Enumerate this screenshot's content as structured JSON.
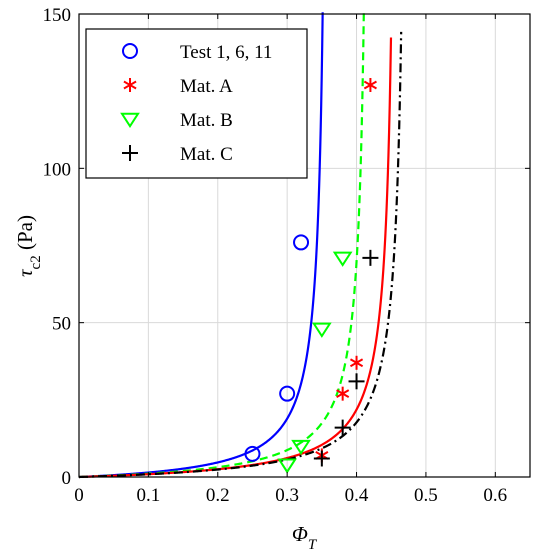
{
  "chart_data": {
    "type": "scatter",
    "xlabel": "Φ",
    "xlabel_sub": "T",
    "ylabel": "τ",
    "ylabel_sub": "c2",
    "ylabel_unit": " (Pa)",
    "xlim": [
      0,
      0.65
    ],
    "ylim": [
      0,
      150
    ],
    "x_ticks": [
      0,
      0.1,
      0.2,
      0.3,
      0.4,
      0.5,
      0.6
    ],
    "x_tick_labels": [
      "0",
      "0.1",
      "0.2",
      "0.3",
      "0.4",
      "0.5",
      "0.6"
    ],
    "y_ticks": [
      0,
      50,
      100,
      150
    ],
    "y_tick_labels": [
      "0",
      "50",
      "100",
      "150"
    ],
    "grid": true,
    "legend_position": "top-left",
    "series": [
      {
        "name": "Test 1, 6, 11",
        "marker": "circle",
        "color": "#0000ff",
        "points": [
          [
            0.25,
            7.5
          ],
          [
            0.3,
            27
          ],
          [
            0.32,
            76
          ]
        ]
      },
      {
        "name": "Mat. A",
        "marker": "asterisk",
        "color": "#ff0000",
        "points": [
          [
            0.35,
            7
          ],
          [
            0.38,
            27
          ],
          [
            0.4,
            37
          ],
          [
            0.42,
            127
          ]
        ]
      },
      {
        "name": "Mat. B",
        "marker": "triangle-down",
        "color": "#00ff00",
        "points": [
          [
            0.3,
            4
          ],
          [
            0.32,
            10
          ],
          [
            0.35,
            48
          ],
          [
            0.38,
            71
          ]
        ]
      },
      {
        "name": "Mat. C",
        "marker": "plus",
        "color": "#000000",
        "points": [
          [
            0.35,
            6
          ],
          [
            0.38,
            16
          ],
          [
            0.4,
            31
          ],
          [
            0.42,
            71
          ]
        ]
      }
    ],
    "fit_curves": [
      {
        "color": "#0000ff",
        "style": "solid",
        "k": 0.36,
        "a": 0.9
      },
      {
        "color": "#00ff00",
        "style": "dashed",
        "k": 0.42,
        "a": 0.83
      },
      {
        "color": "#ff0000",
        "style": "solid",
        "k": 0.46,
        "a": 0.78
      },
      {
        "color": "#000000",
        "style": "dashdot",
        "k": 0.475,
        "a": 0.79
      }
    ]
  }
}
